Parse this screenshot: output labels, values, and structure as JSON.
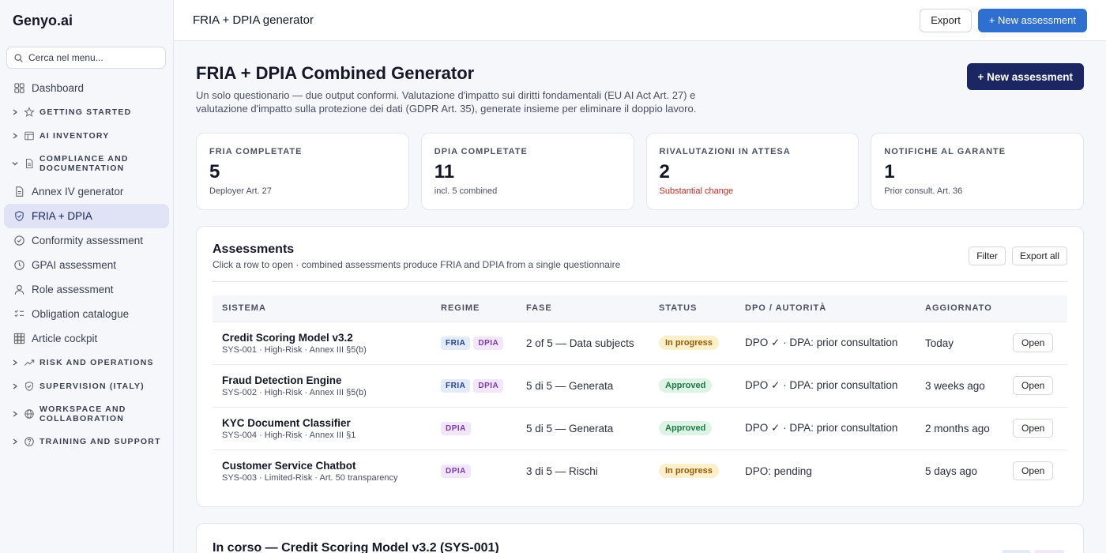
{
  "brand": "Genyo.ai",
  "search": {
    "placeholder": "Cerca nel menu..."
  },
  "sidebar": {
    "dashboard": "Dashboard",
    "groups": {
      "getting_started": "GETTING STARTED",
      "ai_inventory": "AI INVENTORY",
      "compliance": "COMPLIANCE AND DOCUMENTATION",
      "risk": "RISK AND OPERATIONS",
      "supervision": "SUPERVISION (ITALY)",
      "workspace": "WORKSPACE AND COLLABORATION",
      "training": "TRAINING AND SUPPORT"
    },
    "items": [
      {
        "label": "Annex IV generator",
        "icon": "document-icon"
      },
      {
        "label": "FRIA + DPIA",
        "icon": "shield-icon"
      },
      {
        "label": "Conformity assessment",
        "icon": "check-circle-icon"
      },
      {
        "label": "GPAI assessment",
        "icon": "clock-icon"
      },
      {
        "label": "Role assessment",
        "icon": "user-icon"
      },
      {
        "label": "Obligation catalogue",
        "icon": "checklist-icon"
      },
      {
        "label": "Article cockpit",
        "icon": "grid-icon"
      }
    ]
  },
  "topbar": {
    "title": "FRIA + DPIA generator",
    "export": "Export",
    "new_assessment": "+ New assessment"
  },
  "hero": {
    "title": "FRIA + DPIA Combined Generator",
    "description": "Un solo questionario — due output conformi. Valutazione d'impatto sui diritti fondamentali (EU AI Act Art. 27) e valutazione d'impatto sulla protezione dei dati (GDPR Art. 35), generate insieme per eliminare il doppio lavoro.",
    "new_assessment": "+ New assessment"
  },
  "stats": [
    {
      "label": "FRIA COMPLETATE",
      "value": "5",
      "sub": "Deployer Art. 27"
    },
    {
      "label": "DPIA COMPLETATE",
      "value": "11",
      "sub": "incl. 5 combined"
    },
    {
      "label": "RIVALUTAZIONI IN ATTESA",
      "value": "2",
      "sub": "Substantial change"
    },
    {
      "label": "NOTIFICHE AL GARANTE",
      "value": "1",
      "sub": "Prior consult. Art. 36"
    }
  ],
  "assessments": {
    "title": "Assessments",
    "subtitle": "Click a row to open · combined assessments produce FRIA and DPIA from a single questionnaire",
    "filter": "Filter",
    "export_all": "Export all",
    "columns": [
      "SISTEMA",
      "REGIME",
      "FASE",
      "STATUS",
      "DPO / AUTORITÀ",
      "AGGIORNATO",
      ""
    ],
    "open_label": "Open",
    "tag_fria": "FRIA",
    "tag_dpia": "DPIA",
    "rows": [
      {
        "name": "Credit Scoring Model v3.2",
        "meta": "SYS-001 · High-Risk · Annex III §5(b)",
        "fase": "2 of 5 — Data subjects",
        "status": "In progress",
        "dpo": "DPO ✓ · DPA: prior consultation",
        "updated": "Today"
      },
      {
        "name": "Fraud Detection Engine",
        "meta": "SYS-002 · High-Risk · Annex III §5(b)",
        "fase": "5 di 5 — Generata",
        "status": "Approved",
        "dpo": "DPO ✓ · DPA: prior consultation",
        "updated": "3 weeks ago"
      },
      {
        "name": "KYC Document Classifier",
        "meta": "SYS-004 · High-Risk · Annex III §1",
        "fase": "5 di 5 — Generata",
        "status": "Approved",
        "dpo": "DPO ✓ · DPA: prior consultation",
        "updated": "2 months ago"
      },
      {
        "name": "Customer Service Chatbot",
        "meta": "SYS-003 · Limited-Risk · Art. 50 transparency",
        "fase": "3 di 5 — Rischi",
        "status": "In progress",
        "dpo": "DPO: pending",
        "updated": "5 days ago"
      }
    ]
  },
  "in_progress": {
    "title": "In corso — Credit Scoring Model v3.2 (SYS-001)"
  }
}
